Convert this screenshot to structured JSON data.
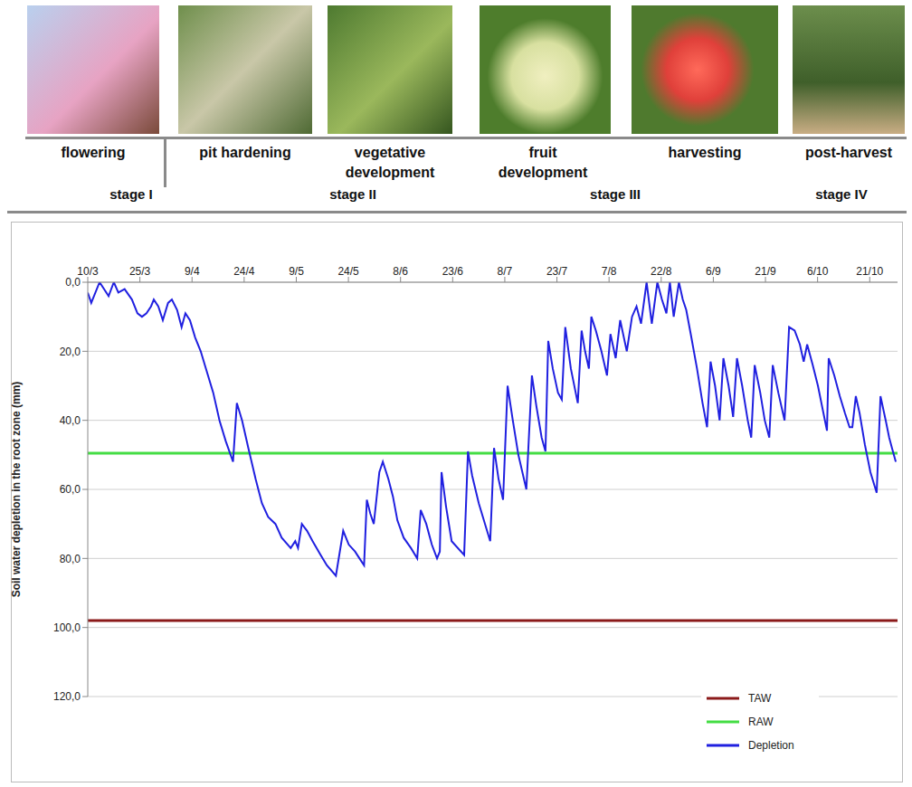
{
  "header": {
    "phases": [
      "flowering",
      "pit hardening",
      "vegetative development",
      "fruit development",
      "harvesting",
      "post-harvest"
    ],
    "stages": [
      "stage I",
      "stage II",
      "stage III",
      "stage IV"
    ]
  },
  "chart_data": {
    "type": "line",
    "y_label": "Soil water depletion in the root zone (mm)",
    "xlim": [
      0,
      233
    ],
    "xticks": [
      {
        "value": 0,
        "label": "10/3"
      },
      {
        "value": 15,
        "label": "25/3"
      },
      {
        "value": 30,
        "label": "9/4"
      },
      {
        "value": 45,
        "label": "24/4"
      },
      {
        "value": 60,
        "label": "9/5"
      },
      {
        "value": 75,
        "label": "24/5"
      },
      {
        "value": 90,
        "label": "8/6"
      },
      {
        "value": 105,
        "label": "23/6"
      },
      {
        "value": 120,
        "label": "8/7"
      },
      {
        "value": 135,
        "label": "23/7"
      },
      {
        "value": 150,
        "label": "7/8"
      },
      {
        "value": 165,
        "label": "22/8"
      },
      {
        "value": 180,
        "label": "6/9"
      },
      {
        "value": 195,
        "label": "21/9"
      },
      {
        "value": 210,
        "label": "6/10"
      },
      {
        "value": 225,
        "label": "21/10"
      }
    ],
    "ylim": [
      0,
      120
    ],
    "yticks": [
      {
        "value": 0,
        "label": "0,0"
      },
      {
        "value": 20,
        "label": "20,0"
      },
      {
        "value": 40,
        "label": "40,0"
      },
      {
        "value": 60,
        "label": "60,0"
      },
      {
        "value": 80,
        "label": "80,0"
      },
      {
        "value": 100,
        "label": "100,0"
      },
      {
        "value": 120,
        "label": "120,0"
      }
    ],
    "grid": true,
    "legend": "lower right",
    "series": [
      {
        "name": "TAW",
        "color": "#8b1a1a",
        "x": [
          0,
          233
        ],
        "values": [
          98,
          98
        ]
      },
      {
        "name": "RAW",
        "color": "#44dd44",
        "x": [
          0,
          233
        ],
        "values": [
          49.5,
          49.5
        ]
      },
      {
        "name": "Depletion",
        "color": "#2020e0",
        "x": [
          0,
          1,
          3.4,
          6,
          7.5,
          8.8,
          10.6,
          12.7,
          14.3,
          15.6,
          16.9,
          18.2,
          19,
          20.3,
          21.6,
          23.1,
          24.2,
          25.7,
          27,
          28.1,
          29.4,
          30.9,
          32.5,
          34,
          36.1,
          37.9,
          39.7,
          41.8,
          42.9,
          44.4,
          46.2,
          48.3,
          50.1,
          51.9,
          54,
          55.8,
          58.4,
          59.7,
          60.5,
          61.6,
          63.1,
          64.7,
          67,
          68.8,
          71.4,
          73.5,
          75.1,
          76.9,
          78.2,
          79.5,
          80.3,
          81.3,
          82.3,
          83.9,
          84.9,
          86.5,
          87.8,
          89.1,
          90.9,
          93,
          94.8,
          95.8,
          97.4,
          99,
          100.5,
          101.3,
          101.8,
          103.1,
          104.7,
          108.3,
          109.4,
          110.6,
          112.5,
          114.3,
          115.8,
          116.9,
          118.2,
          119.5,
          120.8,
          122.3,
          123.9,
          126.2,
          127.8,
          129.1,
          130.6,
          131.7,
          132.5,
          133.8,
          135.3,
          136.4,
          137.4,
          139,
          141,
          142.1,
          143.1,
          144.2,
          144.9,
          146.2,
          147.8,
          149.4,
          150.4,
          151.9,
          153.2,
          155.1,
          156.6,
          157.9,
          159.2,
          160.8,
          162.3,
          163.9,
          165.2,
          166.5,
          167.5,
          168.6,
          170.1,
          171.2,
          172.2,
          173.5,
          175.3,
          176.9,
          178.2,
          179.2,
          180.5,
          181.8,
          182.9,
          184.4,
          185.7,
          186.8,
          188.3,
          189.9,
          190.9,
          191.9,
          193.5,
          194.8,
          196.1,
          197.1,
          198.7,
          200.5,
          201.8,
          203.4,
          204.9,
          206,
          207,
          208.6,
          210.1,
          211.7,
          212.7,
          213.2,
          214.8,
          216.4,
          217.9,
          219.2,
          220,
          221,
          222.1,
          223.6,
          225.2,
          227,
          228.1,
          229.6,
          230.6,
          231.4,
          232.5
        ],
        "values": [
          3,
          6,
          0,
          4,
          0,
          3,
          2,
          5,
          9,
          10,
          9,
          7,
          5,
          7,
          11,
          6,
          5,
          8,
          13,
          9,
          11,
          16,
          20,
          25,
          32,
          40,
          46,
          52,
          35,
          40,
          48,
          57,
          64,
          68,
          70,
          74,
          77,
          75,
          77,
          70,
          72,
          75,
          79,
          82,
          85,
          72,
          76,
          78,
          80,
          82,
          63,
          67,
          70,
          55,
          52,
          57,
          62,
          69,
          74,
          77,
          80,
          66,
          70,
          76,
          80,
          78,
          55,
          65,
          75,
          79,
          49,
          56,
          64,
          70,
          75,
          48,
          57,
          63,
          30,
          40,
          50,
          60,
          27,
          36,
          45,
          49,
          17,
          25,
          32,
          34,
          13,
          25,
          35,
          14,
          20,
          25,
          10,
          14,
          20,
          27,
          15,
          22,
          11,
          20,
          10,
          7,
          12,
          0,
          12,
          0,
          5,
          9,
          0,
          10,
          0,
          5,
          8,
          15,
          25,
          35,
          42,
          23,
          30,
          40,
          22,
          30,
          39,
          22,
          30,
          40,
          45,
          24,
          32,
          40,
          45,
          24,
          32,
          40,
          13,
          14,
          18,
          23,
          18,
          24,
          30,
          38,
          43,
          22,
          27,
          33,
          38,
          42,
          42,
          33,
          38,
          47,
          55,
          61,
          33,
          40,
          45,
          48,
          52
        ]
      }
    ]
  }
}
